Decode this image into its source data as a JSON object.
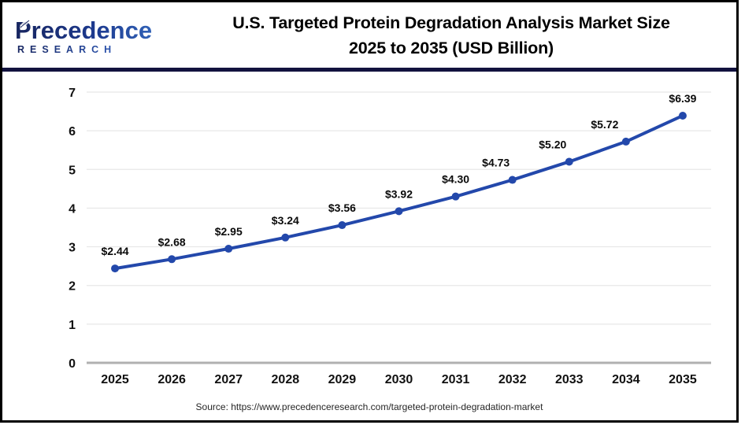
{
  "logo": {
    "line1": "Precedence",
    "line2": "RESEARCH"
  },
  "header": {
    "title_line1": "U.S. Targeted Protein Degradation Analysis Market Size",
    "title_line2": "2025 to 2035 (USD Billion)"
  },
  "chart_data": {
    "type": "line",
    "title": "U.S. Targeted Protein Degradation Analysis Market Size 2025 to 2035 (USD Billion)",
    "categories": [
      "2025",
      "2026",
      "2027",
      "2028",
      "2029",
      "2030",
      "2031",
      "2032",
      "2033",
      "2034",
      "2035"
    ],
    "series": [
      {
        "name": "U.S. Targeted Protein Degradation Analysis Market Size (USD Billion)",
        "values": [
          2.44,
          2.68,
          2.95,
          3.24,
          3.56,
          3.92,
          4.3,
          4.73,
          5.2,
          5.72,
          6.39
        ]
      }
    ],
    "point_labels": [
      "$2.44",
      "$2.68",
      "$2.95",
      "$3.24",
      "$3.56",
      "$3.92",
      "$4.30",
      "$4.73",
      "$5.20",
      "$5.72",
      "$6.39"
    ],
    "label_dx": [
      0,
      0,
      0,
      0,
      0,
      0,
      0,
      -21,
      -21,
      -27,
      0
    ],
    "xlabel": "",
    "ylabel": "",
    "ylim": [
      0,
      7
    ],
    "ytick_step": 1,
    "grid": true,
    "legend": "none",
    "line_color": "#2348ab",
    "marker_color": "#2348ab"
  },
  "footer": {
    "source": "Source: https://www.precedenceresearch.com/targeted-protein-degradation-market"
  }
}
